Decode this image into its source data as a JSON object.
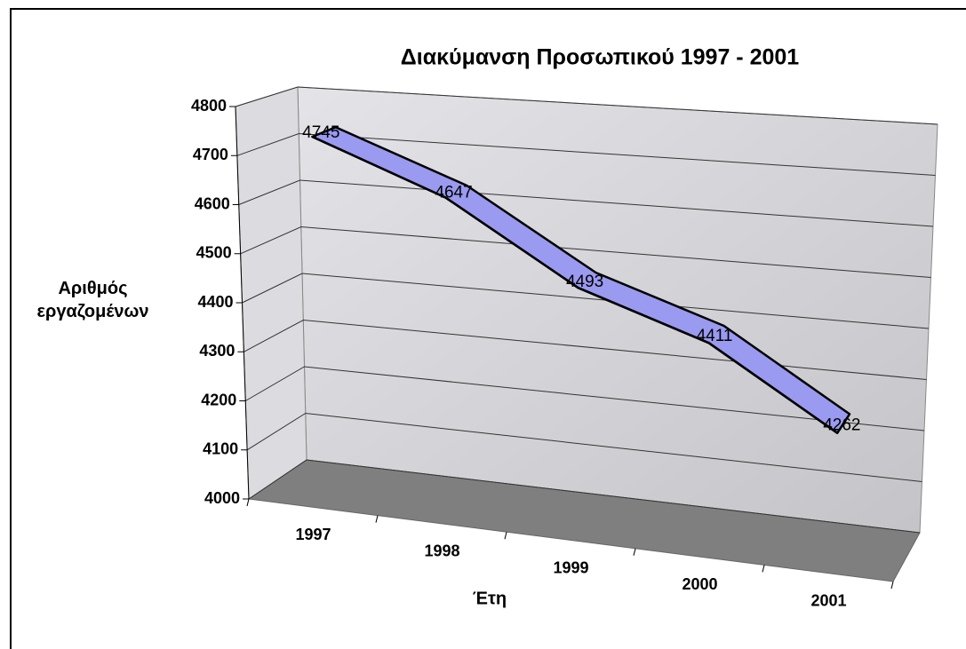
{
  "chart_data": {
    "type": "line3d",
    "title": "Διακύμανση Προσωπικού 1997 - 2001",
    "y_label": "Αριθμός εργαζομένων",
    "x_label": "Έτη",
    "categories": [
      "1997",
      "1998",
      "1999",
      "2000",
      "2001"
    ],
    "values": [
      4745,
      4647,
      4493,
      4411,
      4262
    ],
    "color": "#9a9af0",
    "ylim": [
      4000,
      4800
    ],
    "yticks": [
      4000,
      4100,
      4200,
      4300,
      4400,
      4500,
      4600,
      4700,
      4800
    ],
    "grid": true
  }
}
